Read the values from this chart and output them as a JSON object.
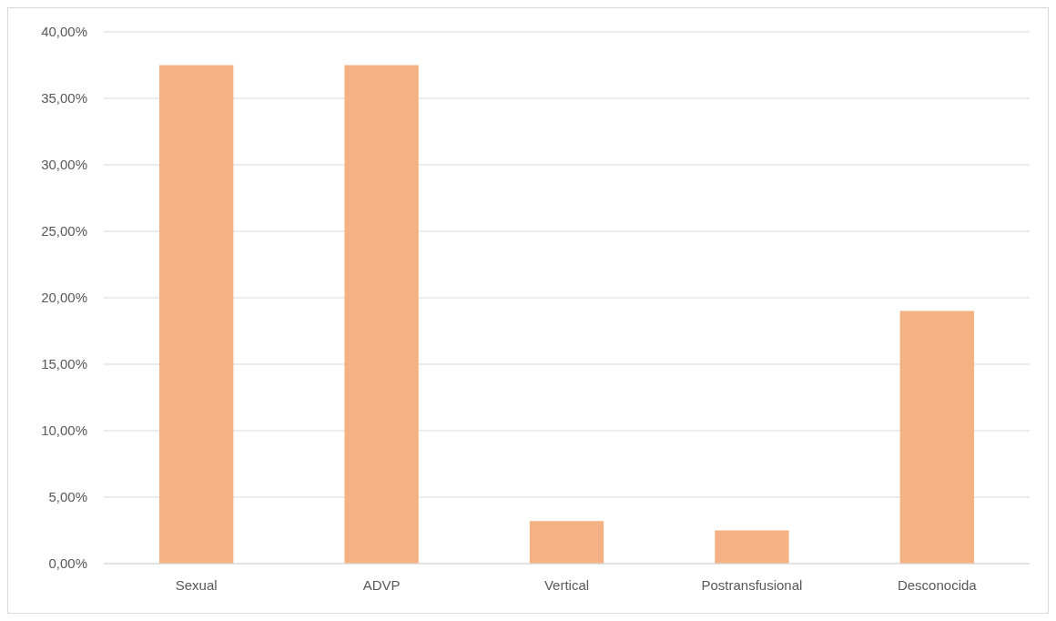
{
  "chart_data": {
    "type": "bar",
    "categories": [
      "Sexual",
      "ADVP",
      "Vertical",
      "Postransfusional",
      "Desconocida"
    ],
    "values": [
      37.5,
      37.5,
      3.2,
      2.5,
      19.0
    ],
    "color": "#f4b183",
    "ylim": [
      0,
      40
    ],
    "yticks": [
      {
        "value": 0,
        "label": "0,00%"
      },
      {
        "value": 5,
        "label": "5,00%"
      },
      {
        "value": 10,
        "label": "10,00%"
      },
      {
        "value": 15,
        "label": "15,00%"
      },
      {
        "value": 20,
        "label": "20,00%"
      },
      {
        "value": 25,
        "label": "25,00%"
      },
      {
        "value": 30,
        "label": "30,00%"
      },
      {
        "value": 35,
        "label": "35,00%"
      },
      {
        "value": 40,
        "label": "40,00%"
      }
    ],
    "grid": "y",
    "legend": false
  }
}
